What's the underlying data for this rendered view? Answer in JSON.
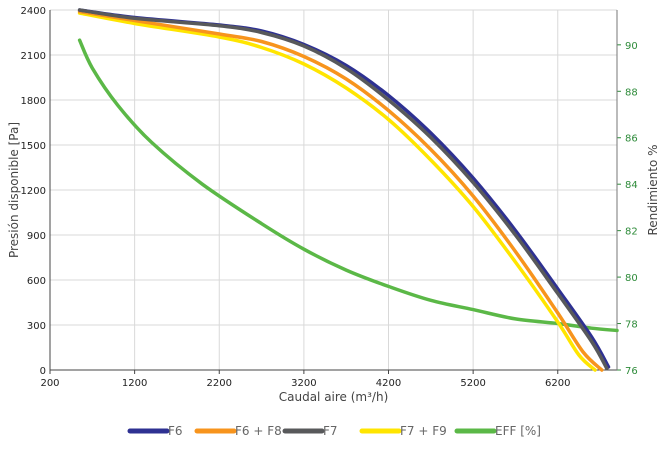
{
  "chart_data": {
    "type": "line",
    "xlabel": "Caudal aire (m³/h)",
    "ylabel": "Presión disponible [Pa]",
    "y2label": "Rendimiento %",
    "xlim": [
      200,
      6900
    ],
    "ylim": [
      0,
      2400
    ],
    "y2lim": [
      76,
      91.5
    ],
    "x_ticks": [
      200,
      1200,
      2200,
      3200,
      4200,
      5200,
      6200
    ],
    "y_ticks": [
      0,
      300,
      600,
      900,
      1200,
      1500,
      1800,
      2100,
      2400
    ],
    "y2_ticks": [
      76,
      78,
      80,
      82,
      84,
      86,
      88,
      90
    ],
    "grid": true,
    "legend_position": "bottom",
    "series": [
      {
        "name": "F6",
        "color": "#2e3192",
        "axis": "left",
        "x": [
          550,
          1200,
          2200,
          2700,
          3200,
          3700,
          4200,
          4700,
          5200,
          5700,
          6200,
          6600,
          6800
        ],
        "y": [
          2400,
          2350,
          2300,
          2260,
          2170,
          2030,
          1830,
          1580,
          1280,
          930,
          540,
          220,
          20
        ]
      },
      {
        "name": "F6 + F8",
        "color": "#f7941d",
        "axis": "left",
        "x": [
          550,
          1200,
          2200,
          2700,
          3200,
          3700,
          4200,
          4700,
          5200,
          5700,
          6200,
          6500,
          6720
        ],
        "y": [
          2390,
          2330,
          2240,
          2190,
          2090,
          1940,
          1730,
          1470,
          1160,
          790,
          380,
          120,
          0
        ]
      },
      {
        "name": "F7",
        "color": "#58595b",
        "axis": "left",
        "x": [
          550,
          1200,
          2200,
          2700,
          3200,
          3700,
          4200,
          4700,
          5200,
          5700,
          6200,
          6600,
          6780
        ],
        "y": [
          2400,
          2345,
          2295,
          2250,
          2160,
          2010,
          1800,
          1550,
          1250,
          900,
          510,
          190,
          10
        ]
      },
      {
        "name": "F7 + F9",
        "color": "#ffe500",
        "axis": "left",
        "x": [
          550,
          1200,
          2200,
          2700,
          3200,
          3700,
          4200,
          4700,
          5200,
          5700,
          6200,
          6450,
          6640
        ],
        "y": [
          2380,
          2310,
          2220,
          2150,
          2040,
          1880,
          1670,
          1400,
          1090,
          720,
          320,
          100,
          0
        ]
      },
      {
        "name": "EFF [%]",
        "color": "#5bb847",
        "axis": "right",
        "x": [
          550,
          700,
          1000,
          1400,
          2000,
          2700,
          3200,
          3700,
          4200,
          4700,
          5200,
          5700,
          6200,
          6600,
          6900
        ],
        "y": [
          90.2,
          89.0,
          87.4,
          85.8,
          84.0,
          82.3,
          81.2,
          80.3,
          79.6,
          79.0,
          78.6,
          78.2,
          78.0,
          77.8,
          77.7
        ]
      }
    ]
  }
}
